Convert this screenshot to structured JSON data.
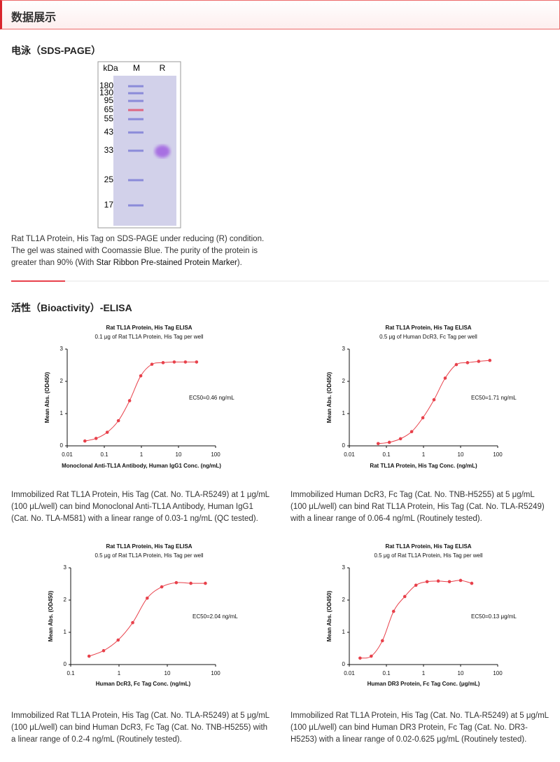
{
  "header": {
    "title": "数据展示"
  },
  "sds": {
    "title": "电泳（SDS-PAGE）",
    "gel": {
      "unit": "kDa",
      "lanes": [
        "M",
        "R"
      ],
      "markers": [
        180,
        130,
        95,
        65,
        55,
        43,
        33,
        25,
        17
      ]
    },
    "caption": {
      "text": "Rat TL1A Protein, His Tag on SDS-PAGE under reducing (R) condition. The gel was stained with Coomassie Blue. The purity of the protein is greater than 90% (With ",
      "link": "Star Ribbon Pre-stained Protein Marker",
      "end": ")."
    }
  },
  "elisa": {
    "title": "活性（Bioactivity）-ELISA"
  },
  "chart_data": [
    {
      "type": "scatter",
      "title": "Rat TL1A Protein, His Tag ELISA",
      "subtitle": "0.1 μg of Rat TL1A Protein, His Tag per well",
      "xlabel": "Monoclonal Anti-TL1A Antibody, Human IgG1 Conc. (ng/mL)",
      "ylabel": "Mean Abs. (OD450)",
      "annotation": "EC50=0.46 ng/mL",
      "x": [
        0.03,
        0.06,
        0.12,
        0.24,
        0.48,
        0.96,
        1.92,
        3.84,
        7.68,
        15.36,
        30.72
      ],
      "values": [
        0.15,
        0.23,
        0.42,
        0.78,
        1.4,
        2.17,
        2.53,
        2.58,
        2.6,
        2.6,
        2.6
      ],
      "color": "#e8414b",
      "xscale": "log",
      "fit_line": true,
      "xlim": [
        0.01,
        100
      ],
      "xticks": [
        0.01,
        0.1,
        1,
        10,
        100
      ],
      "ylim": [
        0,
        3
      ],
      "yticks": [
        0,
        1,
        2,
        3
      ],
      "description": "Immobilized Rat TL1A Protein, His Tag (Cat. No. TLA-R5249) at 1 μg/mL (100 μL/well) can bind Monoclonal Anti-TL1A Antibody, Human IgG1 (Cat. No. TLA-M581) with a linear range of 0.03-1 ng/mL (QC tested)."
    },
    {
      "type": "scatter",
      "title": "Rat TL1A Protein, His Tag ELISA",
      "subtitle": "0.5 μg of Human DcR3, Fc Tag per well",
      "xlabel": "Rat TL1A Protein, His Tag Conc. (ng/mL)",
      "ylabel": "Mean Abs. (OD450)",
      "annotation": "EC50=1.71 ng/mL",
      "x": [
        0.06,
        0.12,
        0.24,
        0.48,
        0.96,
        1.92,
        3.84,
        7.68,
        15.36,
        30.72,
        61.44
      ],
      "values": [
        0.07,
        0.11,
        0.22,
        0.44,
        0.87,
        1.43,
        2.1,
        2.52,
        2.58,
        2.62,
        2.65
      ],
      "color": "#e8414b",
      "xscale": "log",
      "fit_line": true,
      "xlim": [
        0.01,
        100
      ],
      "xticks": [
        0.01,
        0.1,
        1,
        10,
        100
      ],
      "ylim": [
        0,
        3
      ],
      "yticks": [
        0,
        1,
        2,
        3
      ],
      "description": "Immobilized Human DcR3, Fc Tag (Cat. No. TNB-H5255) at 5 μg/mL (100 μL/well) can bind Rat TL1A Protein, His Tag (Cat. No. TLA-R5249) with a linear range of 0.06-4 ng/mL (Routinely tested)."
    },
    {
      "type": "scatter",
      "title": "Rat TL1A Protein, His Tag ELISA",
      "subtitle": "0.5 μg of Rat TL1A Protein, His Tag per well",
      "xlabel": "Human DcR3, Fc Tag Conc. (ng/mL)",
      "ylabel": "Mean Abs. (OD450)",
      "annotation": "EC50=2.04 ng/mL",
      "x": [
        0.24,
        0.48,
        0.96,
        1.92,
        3.84,
        7.68,
        15.36,
        30.72,
        61.44
      ],
      "values": [
        0.26,
        0.43,
        0.76,
        1.3,
        2.06,
        2.41,
        2.54,
        2.52,
        2.52
      ],
      "color": "#e8414b",
      "xscale": "log",
      "fit_line": true,
      "xlim": [
        0.1,
        100
      ],
      "xticks": [
        0.1,
        1,
        10,
        100
      ],
      "ylim": [
        0,
        3
      ],
      "yticks": [
        0,
        1,
        2,
        3
      ],
      "description": "Immobilized Rat TL1A Protein, His Tag (Cat. No. TLA-R5249) at 5 μg/mL (100 μL/well) can bind Human DcR3, Fc Tag (Cat. No. TNB-H5255) with a linear range of 0.2-4 ng/mL (Routinely tested)."
    },
    {
      "type": "scatter",
      "title": "Rat TL1A Protein, His Tag ELISA",
      "subtitle": "0.5 μg of Rat TL1A Protein, His Tag per well",
      "xlabel": "Human DR3 Protein, Fc Tag Conc. (μg/mL)",
      "ylabel": "Mean Abs. (OD450)",
      "annotation": "EC50=0.13 μg/mL",
      "x": [
        0.0195,
        0.039,
        0.078,
        0.156,
        0.3125,
        0.625,
        1.25,
        2.5,
        5,
        10,
        20
      ],
      "values": [
        0.2,
        0.26,
        0.74,
        1.65,
        2.11,
        2.46,
        2.57,
        2.59,
        2.57,
        2.61,
        2.52
      ],
      "color": "#e8414b",
      "xscale": "log",
      "fit_line": true,
      "xlim": [
        0.01,
        100
      ],
      "xticks": [
        0.01,
        0.1,
        1,
        10,
        100
      ],
      "ylim": [
        0,
        3
      ],
      "yticks": [
        0,
        1,
        2,
        3
      ],
      "description": "Immobilized Rat TL1A Protein, His Tag (Cat. No. TLA-R5249) at 5 μg/mL (100 μL/well) can bind Human DR3 Protein, Fc Tag (Cat. No. DR3-H5253) with a linear range of 0.02-0.625 μg/mL (Routinely tested)."
    }
  ]
}
